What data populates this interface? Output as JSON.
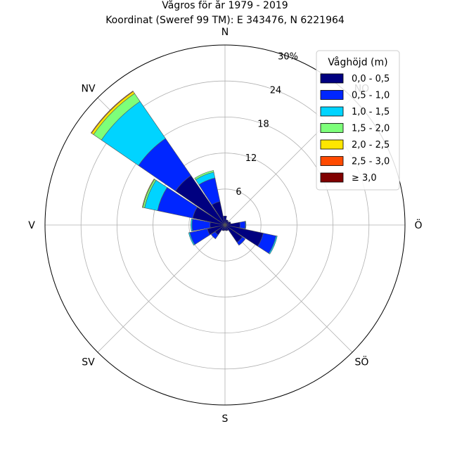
{
  "chart_data": {
    "type": "windrose",
    "title": "Vågros för år 1979 - 2019",
    "subtitle": "Koordinat (Sweref 99 TM): E 343476, N 6221964",
    "directions": [
      "N",
      "NO",
      "Ö",
      "SÖ",
      "S",
      "SV",
      "V",
      "NV"
    ],
    "radial_ticks": [
      "6",
      "12",
      "18",
      "24",
      "30%"
    ],
    "rmax": 30,
    "legend_title": "Våghöjd (m)",
    "bins": [
      "0,0 - 0,5",
      "0,5 - 1,0",
      "1,0 - 1,5",
      "1,5 - 2,0",
      "2,0 - 2,5",
      "2,5 - 3,0",
      "≥ 3,0"
    ],
    "colors": [
      "#000080",
      "#0026ff",
      "#00d4ff",
      "#7dff7a",
      "#ffe600",
      "#ff4a00",
      "#800000"
    ],
    "sector_directions_deg": [
      0,
      22.5,
      45,
      67.5,
      90,
      112.5,
      135,
      157.5,
      180,
      202.5,
      225,
      247.5,
      270,
      292.5,
      315,
      337.5
    ],
    "stacked_cumulative_percent": [
      [
        1.5,
        1.5,
        1.5,
        1.5,
        1.5,
        1.5,
        1.5
      ],
      [
        0.9,
        0.9,
        0.9,
        0.9,
        0.9,
        0.9,
        0.9
      ],
      [
        0.8,
        0.8,
        0.8,
        0.8,
        0.8,
        0.8,
        0.8
      ],
      [
        1.0,
        1.0,
        1.0,
        1.0,
        1.0,
        1.0,
        1.0
      ],
      [
        2.5,
        3.4,
        3.5,
        3.5,
        3.5,
        3.5,
        3.5
      ],
      [
        6.5,
        8.7,
        8.9,
        8.9,
        8.9,
        8.9,
        8.9
      ],
      [
        3.5,
        4.1,
        4.1,
        4.1,
        4.1,
        4.1,
        4.1
      ],
      [
        1.0,
        1.0,
        1.0,
        1.0,
        1.0,
        1.0,
        1.0
      ],
      [
        0.9,
        0.9,
        0.9,
        0.9,
        0.9,
        0.9,
        0.9
      ],
      [
        1.0,
        1.0,
        1.0,
        1.0,
        1.0,
        1.0,
        1.0
      ],
      [
        2.0,
        2.8,
        2.8,
        2.8,
        2.8,
        2.8,
        2.8
      ],
      [
        3.0,
        6.0,
        6.2,
        6.2,
        6.2,
        6.2,
        6.2
      ],
      [
        2.5,
        5.5,
        5.7,
        5.7,
        5.7,
        5.7,
        5.7
      ],
      [
        5.5,
        11.5,
        13.7,
        14.0,
        14.1,
        14.1,
        14.1
      ],
      [
        10.0,
        17.5,
        25.0,
        26.6,
        27.0,
        27.1,
        27.1
      ],
      [
        4.0,
        8.0,
        9.0,
        9.3,
        9.3,
        9.3,
        9.3
      ]
    ]
  }
}
